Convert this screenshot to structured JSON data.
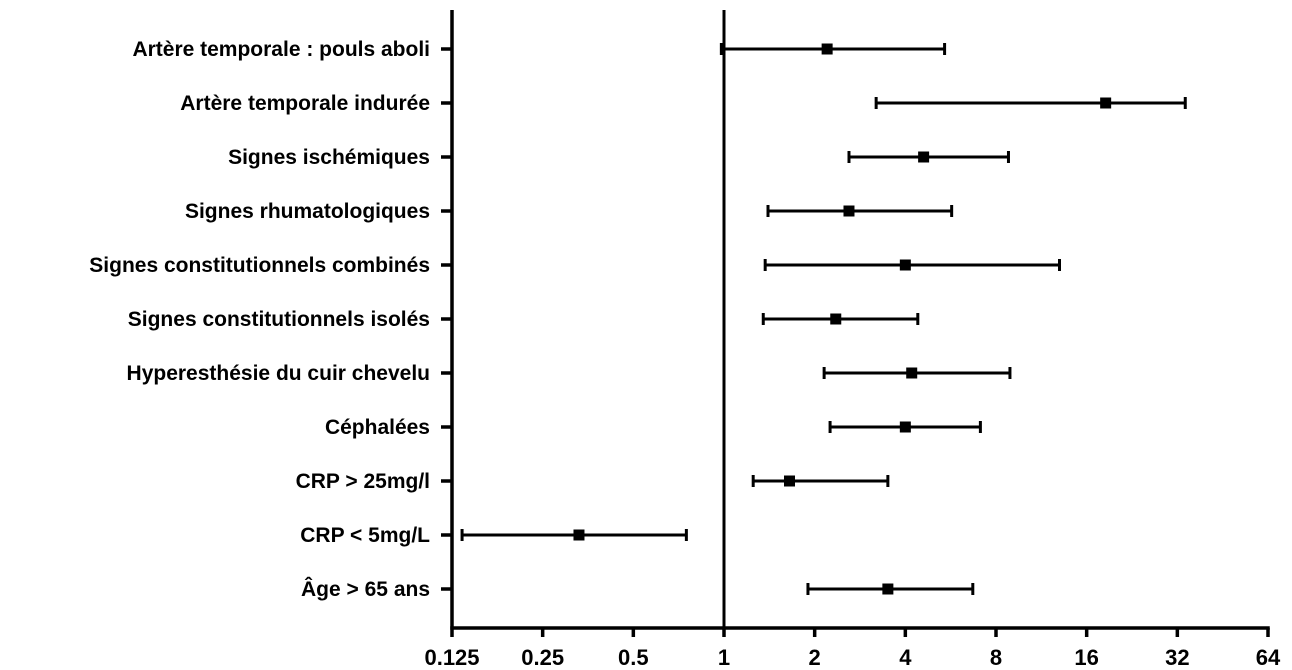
{
  "chart_data": {
    "type": "scatter",
    "subtype": "forest-plot",
    "title": "",
    "xlabel": "",
    "ylabel": "",
    "x_scale": "log2",
    "xlim": [
      0.125,
      64
    ],
    "x_ticks": [
      "0.125",
      "0.25",
      "0.5",
      "1",
      "2",
      "4",
      "8",
      "16",
      "32",
      "64"
    ],
    "reference_line": 1,
    "grid": false,
    "color": "#000000",
    "rows": [
      {
        "label": "Artère temporale : pouls aboli",
        "estimate": 2.2,
        "lower": 0.98,
        "upper": 5.4
      },
      {
        "label": "Artère temporale indurée ",
        "estimate": 18.5,
        "lower": 3.2,
        "upper": 34
      },
      {
        "label": "Signes ischémiques",
        "estimate": 4.6,
        "lower": 2.6,
        "upper": 8.8
      },
      {
        "label": "Signes rhumatologiques",
        "estimate": 2.6,
        "lower": 1.4,
        "upper": 5.7
      },
      {
        "label": "Signes constitutionnels combinés",
        "estimate": 4.0,
        "lower": 1.37,
        "upper": 13.0
      },
      {
        "label": "Signes constitutionnels isolés",
        "estimate": 2.35,
        "lower": 1.35,
        "upper": 4.4
      },
      {
        "label": "Hyperesthésie du cuir chevelu",
        "estimate": 4.2,
        "lower": 2.15,
        "upper": 8.9
      },
      {
        "label": "Céphalées",
        "estimate": 4.0,
        "lower": 2.25,
        "upper": 7.1
      },
      {
        "label": "CRP > 25mg/l",
        "estimate": 1.65,
        "lower": 1.25,
        "upper": 3.5
      },
      {
        "label": "CRP < 5mg/L",
        "estimate": 0.33,
        "lower": 0.135,
        "upper": 0.75
      },
      {
        "label": "Âge > 65 ans",
        "estimate": 3.5,
        "lower": 1.9,
        "upper": 6.7
      }
    ]
  }
}
